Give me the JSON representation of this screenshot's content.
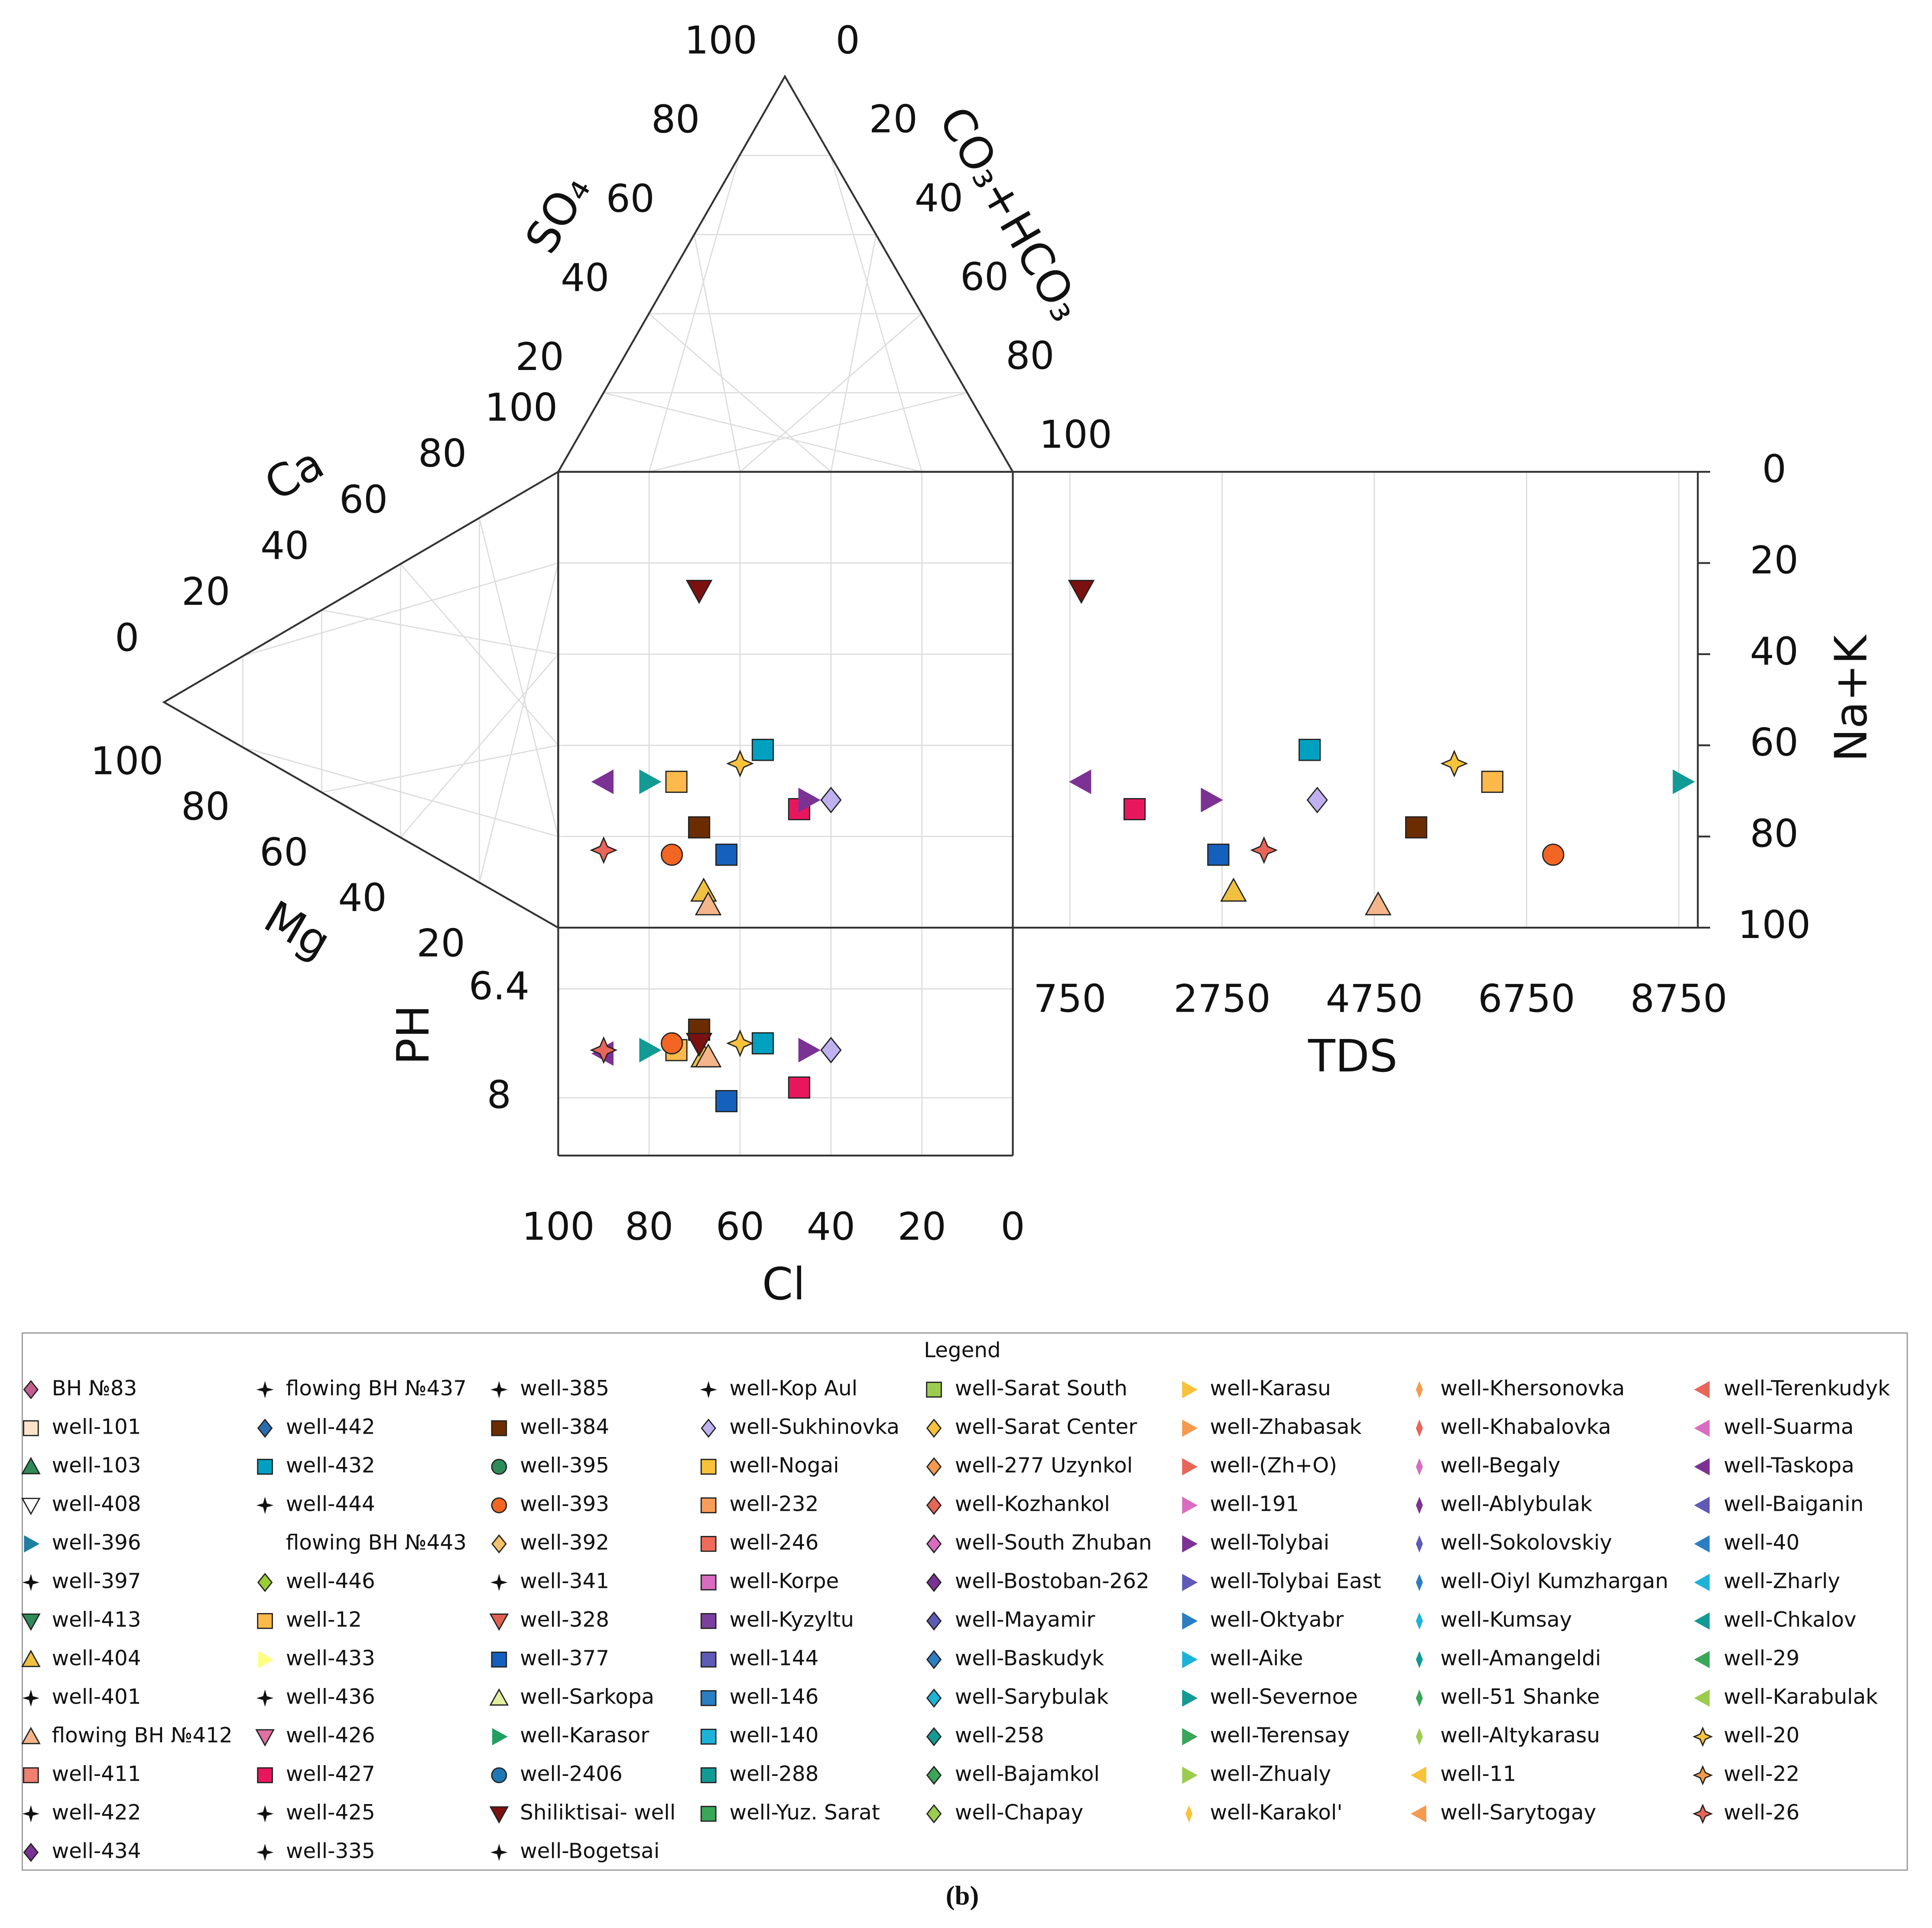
{
  "chart_data": {
    "type": "durov",
    "so4_label": "SO₄",
    "hco3_label": "CO₃+HCO₃",
    "ca_label": "Ca",
    "mg_label": "Mg",
    "cl_label": "Cl",
    "nak_label": "Na+K",
    "tds_label": "TDS",
    "ph_label": "PH",
    "so4_ticks": [
      100,
      80,
      60,
      40,
      20
    ],
    "hco3_ticks": [
      0,
      20,
      40,
      60,
      80,
      100
    ],
    "ca_ticks": [
      100,
      80,
      60,
      40,
      20,
      0
    ],
    "mg_ticks": [
      100,
      80,
      60,
      40,
      20
    ],
    "cl_lim": [
      100,
      0
    ],
    "cl_ticks": [
      100,
      80,
      60,
      40,
      20,
      0
    ],
    "nak_lim": [
      0,
      100
    ],
    "nak_ticks": [
      0,
      20,
      40,
      60,
      80,
      100
    ],
    "tds_lim": [
      0,
      9000
    ],
    "tds_ticks": [
      750,
      2750,
      4750,
      6750,
      8750
    ],
    "ph_lim": [
      5.5,
      8.85
    ],
    "ph_ticks": [
      6.4,
      8
    ],
    "grid": true,
    "legend_title": "Legend",
    "series": [
      {
        "name": "BH №83",
        "marker": "diamond",
        "color": "#c06090"
      },
      {
        "name": "well-101",
        "marker": "square",
        "color": "#fde4c8"
      },
      {
        "name": "well-103",
        "marker": "triangle",
        "color": "#2e8b57"
      },
      {
        "name": "well-408",
        "marker": "tri-down",
        "color": "#ffffff"
      },
      {
        "name": "well-396",
        "marker": "tri-right",
        "color": "#1f7fa0"
      },
      {
        "name": "well-397",
        "marker": "star",
        "color": "#111111"
      },
      {
        "name": "well-413",
        "marker": "tri-down",
        "color": "#2e8b57"
      },
      {
        "name": "well-404",
        "marker": "triangle",
        "color": "#f0c040",
        "cl": [
          68
        ],
        "na_k": [
          92
        ],
        "tds": [
          2900
        ],
        "ph": [
          7.4
        ]
      },
      {
        "name": "well-401",
        "marker": "star",
        "color": "#111111"
      },
      {
        "name": "flowing BH №412",
        "marker": "triangle",
        "color": "#f5b58a",
        "cl": [
          67
        ],
        "na_k": [
          95
        ],
        "tds": [
          4800
        ],
        "ph": [
          7.4
        ]
      },
      {
        "name": "well-411",
        "marker": "square",
        "color": "#f08070"
      },
      {
        "name": "well-422",
        "marker": "star",
        "color": "#111111"
      },
      {
        "name": "well-434",
        "marker": "diamond",
        "color": "#7b3294"
      },
      {
        "name": "flowing BH №437",
        "marker": "star",
        "color": "#111111"
      },
      {
        "name": "well-442",
        "marker": "diamond",
        "color": "#2b6cb0"
      },
      {
        "name": "well-432",
        "marker": "square",
        "color": "#00a0c0",
        "cl": [
          55
        ],
        "na_k": [
          61
        ],
        "tds": [
          3900
        ],
        "ph": [
          7.2
        ]
      },
      {
        "name": "well-444",
        "marker": "star",
        "color": "#111111"
      },
      {
        "name": "flowing BH №443",
        "marker": "tri-left",
        "color": "#ffffff"
      },
      {
        "name": "well-446",
        "marker": "diamond",
        "color": "#9acd32"
      },
      {
        "name": "well-12",
        "marker": "square",
        "color": "#fdb94a",
        "cl": [
          74
        ],
        "na_k": [
          68
        ],
        "tds": [
          6300
        ],
        "ph": [
          7.3
        ]
      },
      {
        "name": "well-433",
        "marker": "tri-right",
        "color": "#ffff80"
      },
      {
        "name": "well-436",
        "marker": "star",
        "color": "#111111"
      },
      {
        "name": "well-426",
        "marker": "tri-down",
        "color": "#e070a0"
      },
      {
        "name": "well-427",
        "marker": "square",
        "color": "#e8175d",
        "cl": [
          47
        ],
        "na_k": [
          74
        ],
        "tds": [
          1600
        ],
        "ph": [
          7.85
        ]
      },
      {
        "name": "well-425",
        "marker": "star",
        "color": "#111111"
      },
      {
        "name": "well-335",
        "marker": "star",
        "color": "#111111"
      },
      {
        "name": "well-385",
        "marker": "star",
        "color": "#111111"
      },
      {
        "name": "well-384",
        "marker": "square",
        "color": "#6b2c00",
        "cl": [
          69
        ],
        "na_k": [
          78
        ],
        "tds": [
          5300
        ],
        "ph": [
          7.0
        ]
      },
      {
        "name": "well-395",
        "marker": "circle",
        "color": "#2e8b57"
      },
      {
        "name": "well-393",
        "marker": "circle",
        "color": "#f26522",
        "cl": [
          75
        ],
        "na_k": [
          84
        ],
        "tds": [
          7100
        ],
        "ph": [
          7.2
        ]
      },
      {
        "name": "well-392",
        "marker": "diamond",
        "color": "#f5c26b"
      },
      {
        "name": "well-341",
        "marker": "star",
        "color": "#111111"
      },
      {
        "name": "well-328",
        "marker": "tri-down",
        "color": "#e06050"
      },
      {
        "name": "well-377",
        "marker": "square",
        "color": "#1560bd",
        "cl": [
          63
        ],
        "na_k": [
          84
        ],
        "tds": [
          2700
        ],
        "ph": [
          8.05
        ]
      },
      {
        "name": "well-Sarkopa",
        "marker": "triangle",
        "color": "#e0f0a0"
      },
      {
        "name": "well-Karasor",
        "marker": "tri-right",
        "color": "#20a060"
      },
      {
        "name": "well-2406",
        "marker": "circle",
        "color": "#1f77b4"
      },
      {
        "name": "Shiliktisai- well",
        "marker": "tri-down",
        "color": "#7b1010",
        "cl": [
          69
        ],
        "na_k": [
          26
        ],
        "tds": [
          900
        ],
        "ph": [
          7.2
        ]
      },
      {
        "name": "well-Bogetsai",
        "marker": "star",
        "color": "#111111"
      },
      {
        "name": "well-Kop Aul",
        "marker": "star",
        "color": "#111111"
      },
      {
        "name": "well-Sukhinovka",
        "marker": "diamond",
        "color": "#c0b0f0",
        "cl": [
          40
        ],
        "na_k": [
          72
        ],
        "tds": [
          4000
        ],
        "ph": [
          7.3
        ]
      },
      {
        "name": "well-Nogai",
        "marker": "square",
        "color": "#f8c23a"
      },
      {
        "name": "well-232",
        "marker": "square",
        "color": "#f79c5a"
      },
      {
        "name": "well-246",
        "marker": "square",
        "color": "#ef6c5a"
      },
      {
        "name": "well-Korpe",
        "marker": "square",
        "color": "#d96cbf"
      },
      {
        "name": "well-Kyzyltu",
        "marker": "square",
        "color": "#7b3f9e"
      },
      {
        "name": "well-144",
        "marker": "square",
        "color": "#5e5ab5"
      },
      {
        "name": "well-146",
        "marker": "square",
        "color": "#2b7ec1"
      },
      {
        "name": "well-140",
        "marker": "square",
        "color": "#1db3d8"
      },
      {
        "name": "well-288",
        "marker": "square",
        "color": "#129a94"
      },
      {
        "name": "well-Yuz. Sarat",
        "marker": "square",
        "color": "#3aa658"
      },
      {
        "name": "well-Sarat South",
        "marker": "square",
        "color": "#9ccc4f"
      },
      {
        "name": "well-Sarat Center",
        "marker": "diamond",
        "color": "#f8c23a"
      },
      {
        "name": "well-277 Uzynkol",
        "marker": "diamond",
        "color": "#f59a4e"
      },
      {
        "name": "well-Kozhankol",
        "marker": "diamond",
        "color": "#e8655a"
      },
      {
        "name": "well-South Zhuban",
        "marker": "diamond",
        "color": "#d96cbf"
      },
      {
        "name": "well-Bostoban-262",
        "marker": "diamond",
        "color": "#7b3294"
      },
      {
        "name": "well-Mayamir",
        "marker": "diamond",
        "color": "#5e5ab5"
      },
      {
        "name": "well-Baskudyk",
        "marker": "diamond",
        "color": "#2b7ec1"
      },
      {
        "name": "well-Sarybulak",
        "marker": "diamond",
        "color": "#1db3d8"
      },
      {
        "name": "well-258",
        "marker": "diamond",
        "color": "#129a94"
      },
      {
        "name": "well-Bajamkol",
        "marker": "diamond",
        "color": "#3aa658"
      },
      {
        "name": "well-Chapay",
        "marker": "diamond",
        "color": "#9ccc4f"
      },
      {
        "name": "well-Karasu",
        "marker": "tri-right",
        "color": "#f8c23a"
      },
      {
        "name": "well-Zhabasak",
        "marker": "tri-right",
        "color": "#f59a4e"
      },
      {
        "name": "well-(Zh+O)",
        "marker": "tri-right",
        "color": "#e8655a"
      },
      {
        "name": "well-191",
        "marker": "tri-right",
        "color": "#d96cbf"
      },
      {
        "name": "well-Tolybai",
        "marker": "tri-right",
        "color": "#7b3294",
        "cl": [
          45
        ],
        "na_k": [
          72
        ],
        "tds": [
          2600
        ],
        "ph": [
          7.3
        ]
      },
      {
        "name": "well-Tolybai East",
        "marker": "tri-right",
        "color": "#5e5ab5"
      },
      {
        "name": "well-Oktyabr",
        "marker": "tri-right",
        "color": "#2b7ec1"
      },
      {
        "name": "well-Aike",
        "marker": "tri-right",
        "color": "#1db3d8"
      },
      {
        "name": "well-Severnoe",
        "marker": "tri-right",
        "color": "#129a94",
        "cl": [
          80
        ],
        "na_k": [
          68
        ],
        "tds": [
          8800
        ],
        "ph": [
          7.3
        ]
      },
      {
        "name": "well-Terensay",
        "marker": "tri-right",
        "color": "#3aa658"
      },
      {
        "name": "well-Zhualy",
        "marker": "tri-right",
        "color": "#9ccc4f"
      },
      {
        "name": "well-Karakol'",
        "marker": "thin-diamond",
        "color": "#f8c23a"
      },
      {
        "name": "well-Khersonovka",
        "marker": "thin-diamond",
        "color": "#f59a4e"
      },
      {
        "name": "well-Khabalovka",
        "marker": "thin-diamond",
        "color": "#e8655a"
      },
      {
        "name": "well-Begaly",
        "marker": "thin-diamond",
        "color": "#d96cbf"
      },
      {
        "name": "well-Ablybulak",
        "marker": "thin-diamond",
        "color": "#7b3294"
      },
      {
        "name": "well-Sokolovskiy",
        "marker": "thin-diamond",
        "color": "#5e5ab5"
      },
      {
        "name": "well-Oiyl Kumzhargan",
        "marker": "thin-diamond",
        "color": "#2b7ec1"
      },
      {
        "name": "well-Kumsay",
        "marker": "thin-diamond",
        "color": "#1db3d8"
      },
      {
        "name": "well-Amangeldi",
        "marker": "thin-diamond",
        "color": "#129a94"
      },
      {
        "name": "well-51 Shanke",
        "marker": "thin-diamond",
        "color": "#3aa658"
      },
      {
        "name": "well-Altykarasu",
        "marker": "thin-diamond",
        "color": "#9ccc4f"
      },
      {
        "name": "well-11",
        "marker": "tri-left",
        "color": "#f8c23a"
      },
      {
        "name": "well-Sarytogay",
        "marker": "tri-left",
        "color": "#f59a4e"
      },
      {
        "name": "well-Terenkudyk",
        "marker": "tri-left",
        "color": "#e8655a"
      },
      {
        "name": "well-Suarma",
        "marker": "tri-left",
        "color": "#d96cbf"
      },
      {
        "name": "well-Taskopa",
        "marker": "tri-left",
        "color": "#7b3294",
        "cl": [
          90
        ],
        "na_k": [
          68
        ],
        "tds": [
          900
        ],
        "ph": [
          7.35
        ]
      },
      {
        "name": "well-Baiganin",
        "marker": "tri-left",
        "color": "#5e5ab5"
      },
      {
        "name": "well-40",
        "marker": "tri-left",
        "color": "#2b7ec1"
      },
      {
        "name": "well-Zharly",
        "marker": "tri-left",
        "color": "#1db3d8"
      },
      {
        "name": "well-Chkalov",
        "marker": "tri-left",
        "color": "#129a94"
      },
      {
        "name": "well-29",
        "marker": "tri-left",
        "color": "#3aa658"
      },
      {
        "name": "well-Karabulak",
        "marker": "tri-left",
        "color": "#9ccc4f"
      },
      {
        "name": "well-20",
        "marker": "star4",
        "color": "#f8c23a",
        "cl": [
          60
        ],
        "na_k": [
          64
        ],
        "tds": [
          5800
        ],
        "ph": [
          7.2
        ]
      },
      {
        "name": "well-22",
        "marker": "star4",
        "color": "#f59a4e"
      },
      {
        "name": "well-26",
        "marker": "star4",
        "color": "#e8655a",
        "cl": [
          90
        ],
        "na_k": [
          83
        ],
        "tds": [
          3300
        ],
        "ph": [
          7.3
        ]
      }
    ]
  },
  "caption": "(b)"
}
